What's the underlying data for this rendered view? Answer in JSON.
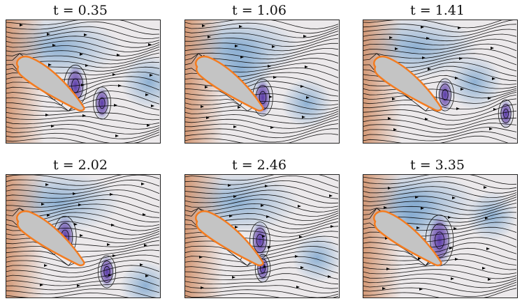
{
  "panels": [
    {
      "time_label": "t = 0.35"
    },
    {
      "time_label": "t = 1.06"
    },
    {
      "time_label": "t = 1.41"
    },
    {
      "time_label": "t = 2.02"
    },
    {
      "time_label": "t = 2.46"
    },
    {
      "time_label": "t = 3.35"
    }
  ],
  "colors": {
    "airfoil_fill": "#c4c4c4",
    "airfoil_edge": "#f47c20",
    "vortex_purple": "#5a3aa8",
    "flow_blue": "#7ea7cf",
    "upstream_orange": "#d08a60",
    "background_grey": "#ece9eb",
    "streamline": "#000000"
  }
}
